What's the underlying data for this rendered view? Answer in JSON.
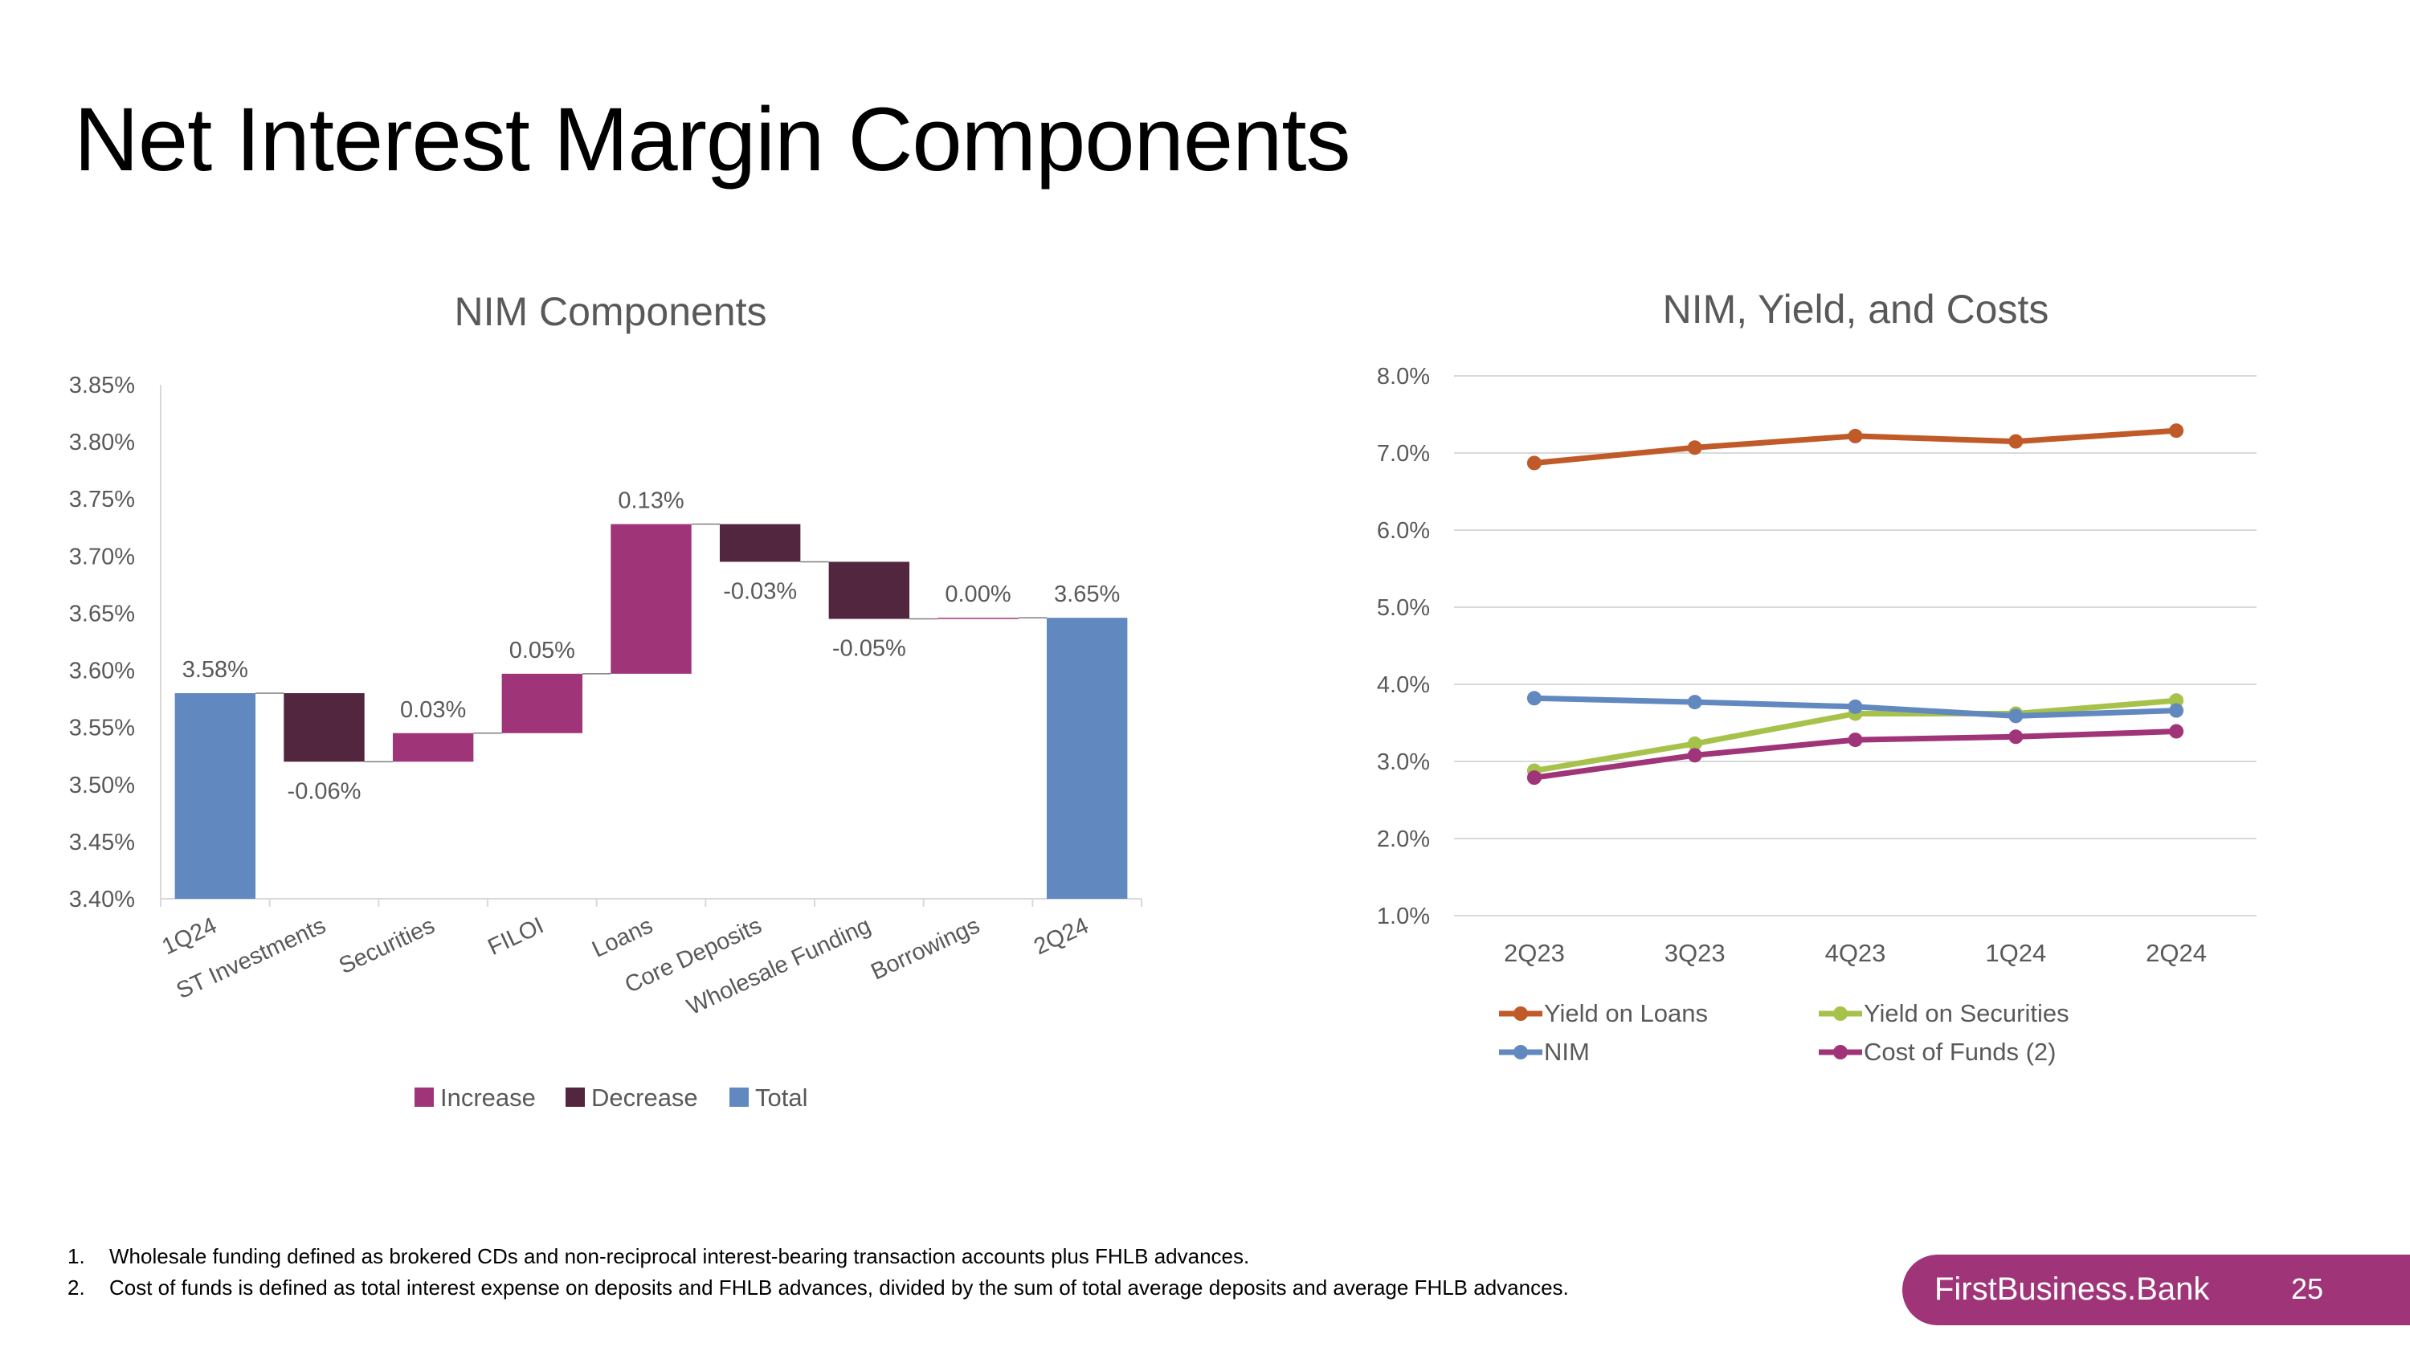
{
  "page": {
    "title": "Net Interest Margin Components",
    "footnotes": [
      {
        "num": "1.",
        "text": "Wholesale funding defined as brokered CDs and non-reciprocal interest-bearing transaction accounts plus FHLB advances."
      },
      {
        "num": "2.",
        "text": "Cost of funds is defined as total interest expense on deposits and FHLB advances, divided by the sum of total average deposits and average FHLB advances."
      }
    ],
    "brand": "FirstBusiness.Bank",
    "page_number": "25"
  },
  "chart_data": [
    {
      "type": "bar",
      "subtype": "waterfall",
      "title": "NIM Components",
      "categories": [
        "1Q24",
        "ST Investments",
        "Securities",
        "FILOI",
        "Loans",
        "Core Deposits",
        "Wholesale Funding",
        "Borrowings",
        "2Q24"
      ],
      "bars": [
        {
          "kind": "total",
          "start": 0,
          "end": 3.58,
          "label": "3.58%"
        },
        {
          "kind": "decrease",
          "start": 3.58,
          "end": 3.52,
          "label": "-0.06%"
        },
        {
          "kind": "increase",
          "start": 3.52,
          "end": 3.545,
          "label": "0.03%"
        },
        {
          "kind": "increase",
          "start": 3.545,
          "end": 3.597,
          "label": "0.05%"
        },
        {
          "kind": "increase",
          "start": 3.597,
          "end": 3.728,
          "label": "0.13%"
        },
        {
          "kind": "decrease",
          "start": 3.728,
          "end": 3.695,
          "label": "-0.03%"
        },
        {
          "kind": "decrease",
          "start": 3.695,
          "end": 3.645,
          "label": "-0.05%"
        },
        {
          "kind": "increase",
          "start": 3.645,
          "end": 3.646,
          "label": "0.00%"
        },
        {
          "kind": "total",
          "start": 0,
          "end": 3.646,
          "label": "3.65%"
        }
      ],
      "ylim": [
        3.4,
        3.85
      ],
      "yticks": [
        "3.40%",
        "3.45%",
        "3.50%",
        "3.55%",
        "3.60%",
        "3.65%",
        "3.70%",
        "3.75%",
        "3.80%",
        "3.85%"
      ],
      "legend": [
        {
          "name": "Increase",
          "color": "#a03478"
        },
        {
          "name": "Decrease",
          "color": "#53263f"
        },
        {
          "name": "Total",
          "color": "#6189c0"
        }
      ],
      "legend_position": "bottom",
      "xlabel": "",
      "ylabel": ""
    },
    {
      "type": "line",
      "title": "NIM, Yield, and Costs",
      "categories": [
        "2Q23",
        "3Q23",
        "4Q23",
        "1Q24",
        "2Q24"
      ],
      "series": [
        {
          "name": "Yield on Loans",
          "color": "#c05a28",
          "values": [
            6.87,
            7.07,
            7.22,
            7.15,
            7.29
          ]
        },
        {
          "name": "Yield on Securities",
          "color": "#a7c24b",
          "values": [
            2.88,
            3.23,
            3.62,
            3.62,
            3.79
          ]
        },
        {
          "name": "NIM",
          "color": "#6189c0",
          "values": [
            3.82,
            3.77,
            3.71,
            3.59,
            3.66
          ]
        },
        {
          "name": "Cost of Funds (2)",
          "color": "#a03478",
          "values": [
            2.79,
            3.08,
            3.28,
            3.32,
            3.39
          ]
        }
      ],
      "ylim": [
        1.0,
        8.0
      ],
      "yticks": [
        "1.0%",
        "2.0%",
        "3.0%",
        "4.0%",
        "5.0%",
        "6.0%",
        "7.0%",
        "8.0%"
      ],
      "grid": true,
      "legend_position": "bottom",
      "xlabel": "",
      "ylabel": ""
    }
  ]
}
